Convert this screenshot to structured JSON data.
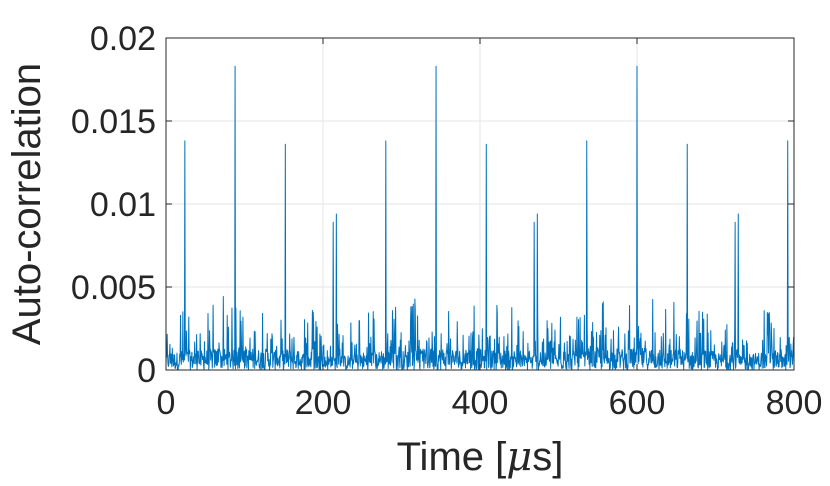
{
  "chart_data": {
    "type": "line",
    "title": "",
    "xlabel_prefix": "Time [",
    "xlabel_mu": "μ",
    "xlabel_suffix": "s]",
    "ylabel": "Auto-correlation",
    "xlim": [
      0,
      800
    ],
    "ylim": [
      0,
      0.02
    ],
    "x_ticks": [
      0,
      200,
      400,
      600,
      800
    ],
    "x_tick_labels": [
      "0",
      "200",
      "400",
      "600",
      "800"
    ],
    "y_ticks": [
      0,
      0.005,
      0.01,
      0.015,
      0.02
    ],
    "y_tick_labels": [
      "0",
      "0.005",
      "0.01",
      "0.015",
      "0.02"
    ],
    "grid": true,
    "series_color": "#0072BD",
    "baseline": {
      "x": [
        0,
        12,
        25,
        38,
        52,
        65,
        78,
        92,
        105,
        118,
        132,
        145,
        158,
        172,
        185,
        198,
        212,
        225,
        238,
        252,
        265,
        278,
        292,
        305,
        318,
        332,
        345,
        358,
        372,
        385,
        398,
        412,
        425,
        438,
        452,
        465,
        478,
        492,
        505,
        518,
        532,
        545,
        558,
        572,
        585,
        598,
        612,
        625,
        638,
        652,
        665,
        678,
        692,
        705,
        718,
        732,
        745,
        758,
        772,
        785,
        800
      ],
      "y": [
        0.0039,
        0.0035,
        0.0041,
        0.0038,
        0.0041,
        0.0045,
        0.0044,
        0.0038,
        0.0044,
        0.0042,
        0.0042,
        0.0037,
        0.0045,
        0.0035,
        0.0038,
        0.0028,
        0.003,
        0.0029,
        0.0031,
        0.0036,
        0.0036,
        0.0038,
        0.0043,
        0.0037,
        0.0044,
        0.004,
        0.0044,
        0.0045,
        0.0041,
        0.004,
        0.0043,
        0.0039,
        0.0041,
        0.0039,
        0.0032,
        0.0031,
        0.0036,
        0.0031,
        0.0037,
        0.0037,
        0.0038,
        0.004,
        0.0044,
        0.0045,
        0.0041,
        0.0044,
        0.0045,
        0.0044,
        0.0038,
        0.0044,
        0.0036,
        0.0038,
        0.0041,
        0.0033,
        0.0033,
        0.003,
        0.0032,
        0.0037,
        0.0036,
        0.0033,
        0.0034
      ]
    },
    "peaks": {
      "x": [
        24,
        88,
        152,
        213,
        217,
        280,
        344,
        408,
        469,
        473,
        536,
        600,
        664,
        725,
        729,
        792
      ],
      "y": [
        0.0138,
        0.0183,
        0.0136,
        0.0089,
        0.0094,
        0.0138,
        0.0183,
        0.0136,
        0.0089,
        0.0094,
        0.0138,
        0.0183,
        0.0136,
        0.0089,
        0.0094,
        0.0138
      ]
    }
  }
}
